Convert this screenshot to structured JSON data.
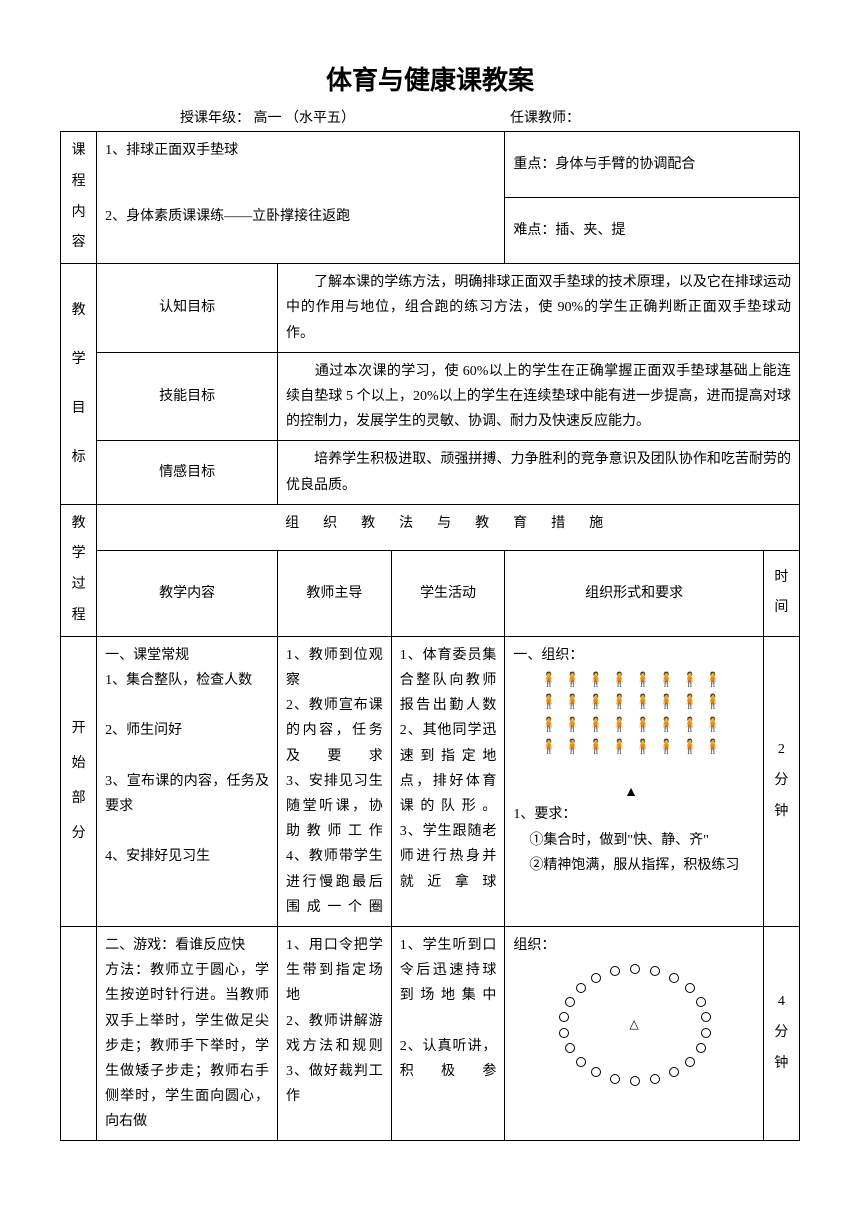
{
  "title": "体育与健康课教案",
  "meta": {
    "grade_label": "授课年级：",
    "grade_value": "高一 （水平五）",
    "teacher_label": "任课教师：",
    "teacher_value": ""
  },
  "course": {
    "side_label": "课程内容",
    "item1": "1、排球正面双手垫球",
    "item2": "2、身体素质课课练——立卧撑接往返跑",
    "focus": "重点：身体与手臂的协调配合",
    "difficulty": "难点：插、夹、提"
  },
  "goals": {
    "side_label": "教学目标",
    "rows": [
      {
        "label": "认知目标",
        "text": "　　了解本课的学练方法，明确排球正面双手垫球的技术原理，以及它在排球运动中的作用与地位，组合跑的练习方法，使 90%的学生正确判断正面双手垫球动作。"
      },
      {
        "label": "技能目标",
        "text": "　　通过本次课的学习，使 60%以上的学生在正确掌握正面双手垫球基础上能连续自垫球 5 个以上，20%以上的学生在连续垫球中能有进一步提高，进而提高对球的控制力，发展学生的灵敏、协调、耐力及快速反应能力。"
      },
      {
        "label": "情感目标",
        "text": "　　培养学生积极进取、顽强拼搏、力争胜利的竞争意识及团队协作和吃苦耐劳的优良品质。"
      }
    ]
  },
  "process": {
    "side_label": "教学过程",
    "banner": "组织教法与教育措施",
    "headers": {
      "content": "教学内容",
      "teacher": "教师主导",
      "student": "学生活动",
      "org": "组织形式和要求",
      "time": "时间"
    }
  },
  "start": {
    "side_label": "开始部分",
    "content": "一、课堂常规\n1、集合整队，检查人数\n\n2、师生问好\n\n3、宣布课的内容，任务及要求\n\n4、安排好见习生",
    "teacher": "1、教师到位观察\n2、教师宣布课的内容，任务及要求\n3、安排见习生随堂听课，协助教师工作\n4、教师带学生进行慢跑最后围成一个圈",
    "student": "1、体育委员集合整队向教师报告出勤人数\n2、其他同学迅速到指定地点，排好体育课的队形。\n3、学生跟随老师进行热身并就近拿球",
    "org_title": "一、组织：",
    "req_title": "1、要求：",
    "req1": "①集合时，做到\"快、静、齐\"",
    "req2": "②精神饱满，服从指挥，积极练习",
    "time": "2分钟"
  },
  "game": {
    "content": "二、游戏：看谁反应快\n方法：教师立于圆心，学生按逆时针行进。当教师双手上举时，学生做足尖步走；教师手下举时，学生做矮子步走；教师右手侧举时，学生面向圆心，向右做",
    "teacher": "1、用口令把学生带到指定场地\n2、教师讲解游戏方法和规则\n3、做好裁判工作",
    "student": "1、学生听到口令后迅速持球到场地集中\n\n2、认真听讲，积极参",
    "org_title": "组织：",
    "time": "4分钟"
  }
}
